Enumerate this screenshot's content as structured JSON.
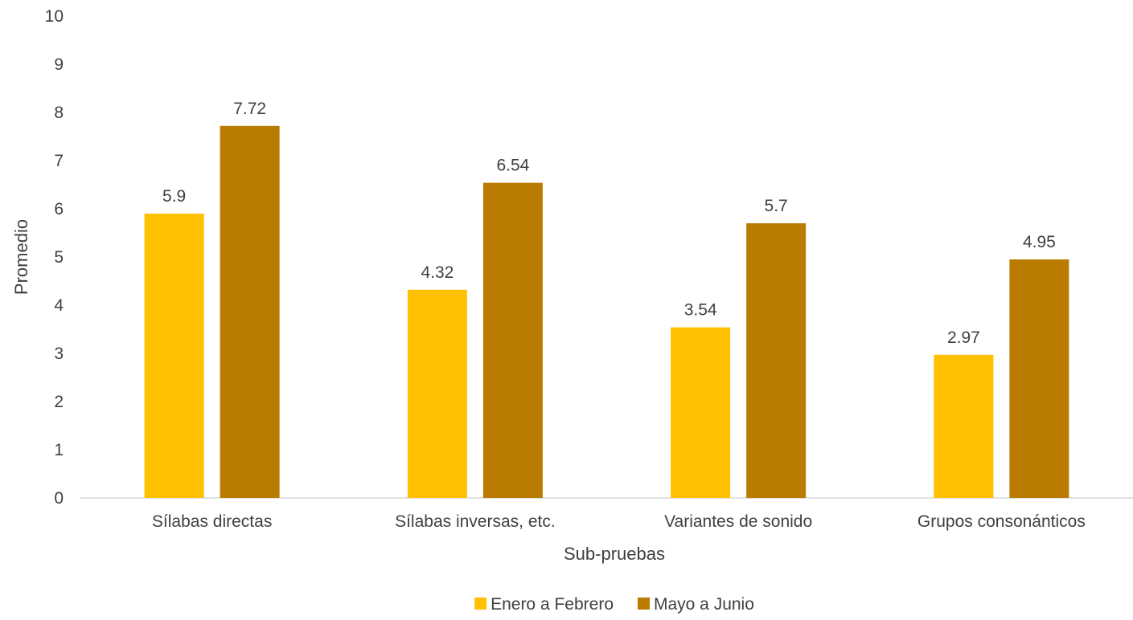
{
  "chart_data": {
    "type": "bar",
    "xlabel": "Sub-pruebas",
    "ylabel": "Promedio",
    "ylim": [
      0,
      10
    ],
    "yticks": [
      "0",
      "1",
      "2",
      "3",
      "4",
      "5",
      "6",
      "7",
      "8",
      "9",
      "10"
    ],
    "categories": [
      "Sílabas directas",
      "Sílabas inversas, etc.",
      "Variantes de sonido",
      "Grupos consonánticos"
    ],
    "series": [
      {
        "name": "Enero a Febrero",
        "color": "#FFC000",
        "values": [
          5.9,
          4.32,
          3.54,
          2.97
        ]
      },
      {
        "name": "Mayo a Junio",
        "color": "#B97C00",
        "values": [
          7.72,
          6.54,
          5.7,
          4.95
        ]
      }
    ],
    "grid": false,
    "legend_position": "bottom"
  }
}
